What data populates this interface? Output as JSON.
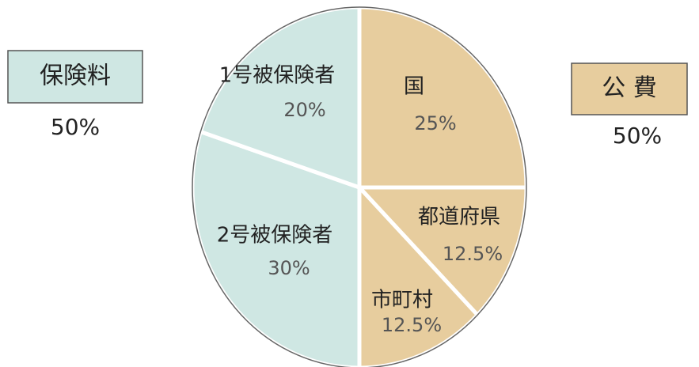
{
  "chart_data": {
    "type": "pie",
    "categories": [
      "国",
      "都道府県",
      "市町村",
      "2号被保険者",
      "1号被保険者"
    ],
    "values": [
      25,
      12.5,
      12.5,
      30,
      20
    ],
    "value_labels": [
      "25%",
      "12.5%",
      "12.5%",
      "30%",
      "20%"
    ],
    "colors": [
      "#e7cd9e",
      "#e7cd9e",
      "#e7cd9e",
      "#cfe7e3",
      "#cfe7e3"
    ],
    "groups": [
      {
        "name": "保険料",
        "value": 50,
        "value_label": "50%",
        "color": "#cfe7e3"
      },
      {
        "name": "公 費",
        "value": 50,
        "value_label": "50%",
        "color": "#e7cd9e"
      }
    ]
  }
}
